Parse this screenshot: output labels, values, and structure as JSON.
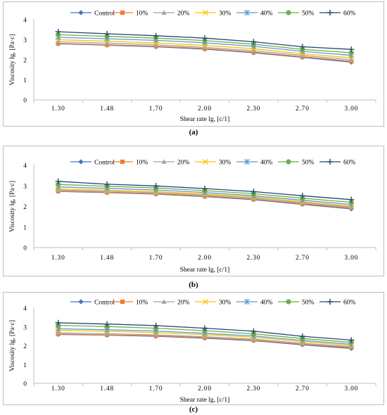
{
  "charts": [
    {
      "label": "(a)",
      "chart_data": {
        "type": "line",
        "categories": [
          "1.30",
          "1.48",
          "1.70",
          "2.00",
          "2.30",
          "2.70",
          "3.00"
        ],
        "ylim": [
          0,
          4
        ],
        "yticks": [
          "0",
          "1",
          "2",
          "3",
          "4"
        ],
        "xlabel": "Shear rate lg, [c/1]",
        "ylabel": "Viscosity lg, [Pa·c]",
        "legend_position": "top",
        "grid": false,
        "series": [
          {
            "name": "Control",
            "color": "#4472C4",
            "marker": "diamond",
            "values": [
              2.8,
              2.73,
              2.65,
              2.53,
              2.35,
              2.12,
              1.88
            ]
          },
          {
            "name": "10%",
            "color": "#ED7D31",
            "marker": "square",
            "values": [
              2.82,
              2.75,
              2.68,
              2.56,
              2.38,
              2.15,
              1.93
            ]
          },
          {
            "name": "20%",
            "color": "#A5A5A5",
            "marker": "triangle",
            "values": [
              2.9,
              2.83,
              2.75,
              2.62,
              2.45,
              2.22,
              2.0
            ]
          },
          {
            "name": "30%",
            "color": "#FFC000",
            "marker": "x",
            "values": [
              3.0,
              2.93,
              2.84,
              2.72,
              2.55,
              2.3,
              2.1
            ]
          },
          {
            "name": "40%",
            "color": "#5B9BD5",
            "marker": "star",
            "values": [
              3.12,
              3.05,
              2.97,
              2.85,
              2.67,
              2.42,
              2.22
            ]
          },
          {
            "name": "50%",
            "color": "#70AD47",
            "marker": "circle",
            "values": [
              3.25,
              3.17,
              3.08,
              2.96,
              2.78,
              2.52,
              2.35
            ]
          },
          {
            "name": "60%",
            "color": "#264478",
            "marker": "plus",
            "values": [
              3.4,
              3.3,
              3.2,
              3.08,
              2.9,
              2.65,
              2.52
            ]
          }
        ]
      }
    },
    {
      "label": "(b)",
      "chart_data": {
        "type": "line",
        "categories": [
          "1.30",
          "1.48",
          "1.70",
          "2.00",
          "2.30",
          "2.70",
          "3.00"
        ],
        "ylim": [
          0,
          4
        ],
        "yticks": [
          "0",
          "1",
          "2",
          "3",
          "4"
        ],
        "xlabel": "Shear rate lg, [c/1]",
        "ylabel": "Viscosity lg, [Pa·c]",
        "legend_position": "top",
        "grid": false,
        "series": [
          {
            "name": "Control",
            "color": "#4472C4",
            "marker": "diamond",
            "values": [
              2.73,
              2.67,
              2.6,
              2.48,
              2.33,
              2.1,
              1.88
            ]
          },
          {
            "name": "10%",
            "color": "#ED7D31",
            "marker": "square",
            "values": [
              2.75,
              2.69,
              2.62,
              2.51,
              2.36,
              2.13,
              1.93
            ]
          },
          {
            "name": "20%",
            "color": "#A5A5A5",
            "marker": "triangle",
            "values": [
              2.8,
              2.74,
              2.67,
              2.56,
              2.41,
              2.18,
              1.98
            ]
          },
          {
            "name": "30%",
            "color": "#FFC000",
            "marker": "x",
            "values": [
              2.85,
              2.79,
              2.72,
              2.61,
              2.46,
              2.23,
              2.03
            ]
          },
          {
            "name": "40%",
            "color": "#5B9BD5",
            "marker": "star",
            "values": [
              2.95,
              2.88,
              2.8,
              2.68,
              2.52,
              2.3,
              2.1
            ]
          },
          {
            "name": "50%",
            "color": "#70AD47",
            "marker": "circle",
            "values": [
              3.07,
              2.98,
              2.9,
              2.77,
              2.62,
              2.4,
              2.2
            ]
          },
          {
            "name": "60%",
            "color": "#264478",
            "marker": "plus",
            "values": [
              3.22,
              3.08,
              3.0,
              2.87,
              2.72,
              2.52,
              2.33
            ]
          }
        ]
      }
    },
    {
      "label": "(c)",
      "chart_data": {
        "type": "line",
        "categories": [
          "1.30",
          "1.48",
          "1.70",
          "2.00",
          "2.30",
          "2.70",
          "3.00"
        ],
        "ylim": [
          0,
          4
        ],
        "yticks": [
          "0",
          "1",
          "2",
          "3",
          "4"
        ],
        "xlabel": "Shear rate lg, [c/1]",
        "ylabel": "Viscosity lg, [Pa·c]",
        "legend_position": "top",
        "grid": false,
        "series": [
          {
            "name": "Control",
            "color": "#4472C4",
            "marker": "diamond",
            "values": [
              2.6,
              2.56,
              2.5,
              2.4,
              2.27,
              2.05,
              1.85
            ]
          },
          {
            "name": "10%",
            "color": "#ED7D31",
            "marker": "square",
            "values": [
              2.62,
              2.58,
              2.53,
              2.43,
              2.3,
              2.08,
              1.9
            ]
          },
          {
            "name": "20%",
            "color": "#A5A5A5",
            "marker": "triangle",
            "values": [
              2.68,
              2.64,
              2.58,
              2.48,
              2.35,
              2.13,
              1.95
            ]
          },
          {
            "name": "30%",
            "color": "#FFC000",
            "marker": "x",
            "values": [
              2.82,
              2.77,
              2.7,
              2.59,
              2.45,
              2.22,
              2.02
            ]
          },
          {
            "name": "40%",
            "color": "#5B9BD5",
            "marker": "star",
            "values": [
              2.9,
              2.85,
              2.78,
              2.66,
              2.52,
              2.28,
              2.08
            ]
          },
          {
            "name": "50%",
            "color": "#70AD47",
            "marker": "circle",
            "values": [
              3.08,
              3.02,
              2.93,
              2.8,
              2.63,
              2.38,
              2.18
            ]
          },
          {
            "name": "60%",
            "color": "#264478",
            "marker": "plus",
            "values": [
              3.22,
              3.15,
              3.07,
              2.93,
              2.77,
              2.5,
              2.3
            ]
          }
        ]
      }
    }
  ]
}
